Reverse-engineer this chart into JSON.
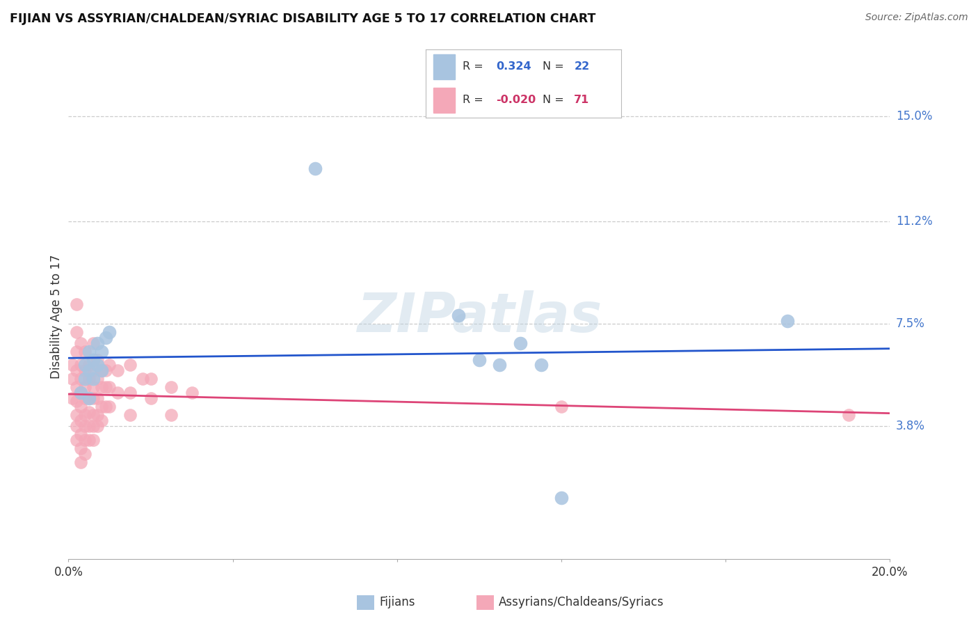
{
  "title": "FIJIAN VS ASSYRIAN/CHALDEAN/SYRIAC DISABILITY AGE 5 TO 17 CORRELATION CHART",
  "source": "Source: ZipAtlas.com",
  "ylabel": "Disability Age 5 to 17",
  "xlim": [
    0.0,
    0.2
  ],
  "ylim": [
    -0.01,
    0.165
  ],
  "ytick_positions": [
    0.038,
    0.075,
    0.112,
    0.15
  ],
  "ytick_labels": [
    "3.8%",
    "7.5%",
    "11.2%",
    "15.0%"
  ],
  "grid_color": "#cccccc",
  "background_color": "#ffffff",
  "watermark": "ZIPatlas",
  "fijian_color": "#a8c4e0",
  "assyrian_color": "#f4a8b8",
  "fijian_line_color": "#2255cc",
  "assyrian_line_color": "#dd4477",
  "fijian_points": [
    [
      0.003,
      0.05
    ],
    [
      0.004,
      0.055
    ],
    [
      0.004,
      0.06
    ],
    [
      0.005,
      0.048
    ],
    [
      0.005,
      0.058
    ],
    [
      0.005,
      0.065
    ],
    [
      0.006,
      0.055
    ],
    [
      0.006,
      0.062
    ],
    [
      0.007,
      0.06
    ],
    [
      0.007,
      0.068
    ],
    [
      0.008,
      0.058
    ],
    [
      0.008,
      0.065
    ],
    [
      0.009,
      0.07
    ],
    [
      0.01,
      0.072
    ],
    [
      0.06,
      0.131
    ],
    [
      0.095,
      0.078
    ],
    [
      0.1,
      0.062
    ],
    [
      0.105,
      0.06
    ],
    [
      0.11,
      0.068
    ],
    [
      0.115,
      0.06
    ],
    [
      0.175,
      0.076
    ],
    [
      0.12,
      0.012
    ]
  ],
  "assyrian_points": [
    [
      0.001,
      0.06
    ],
    [
      0.001,
      0.055
    ],
    [
      0.001,
      0.048
    ],
    [
      0.002,
      0.082
    ],
    [
      0.002,
      0.072
    ],
    [
      0.002,
      0.065
    ],
    [
      0.002,
      0.058
    ],
    [
      0.002,
      0.052
    ],
    [
      0.002,
      0.047
    ],
    [
      0.002,
      0.042
    ],
    [
      0.002,
      0.038
    ],
    [
      0.002,
      0.033
    ],
    [
      0.003,
      0.068
    ],
    [
      0.003,
      0.06
    ],
    [
      0.003,
      0.055
    ],
    [
      0.003,
      0.05
    ],
    [
      0.003,
      0.045
    ],
    [
      0.003,
      0.04
    ],
    [
      0.003,
      0.035
    ],
    [
      0.003,
      0.03
    ],
    [
      0.003,
      0.025
    ],
    [
      0.004,
      0.065
    ],
    [
      0.004,
      0.058
    ],
    [
      0.004,
      0.052
    ],
    [
      0.004,
      0.048
    ],
    [
      0.004,
      0.042
    ],
    [
      0.004,
      0.038
    ],
    [
      0.004,
      0.033
    ],
    [
      0.004,
      0.028
    ],
    [
      0.005,
      0.06
    ],
    [
      0.005,
      0.055
    ],
    [
      0.005,
      0.048
    ],
    [
      0.005,
      0.043
    ],
    [
      0.005,
      0.038
    ],
    [
      0.005,
      0.033
    ],
    [
      0.006,
      0.068
    ],
    [
      0.006,
      0.058
    ],
    [
      0.006,
      0.052
    ],
    [
      0.006,
      0.048
    ],
    [
      0.006,
      0.042
    ],
    [
      0.006,
      0.038
    ],
    [
      0.006,
      0.033
    ],
    [
      0.007,
      0.062
    ],
    [
      0.007,
      0.055
    ],
    [
      0.007,
      0.048
    ],
    [
      0.007,
      0.042
    ],
    [
      0.007,
      0.038
    ],
    [
      0.008,
      0.058
    ],
    [
      0.008,
      0.052
    ],
    [
      0.008,
      0.045
    ],
    [
      0.008,
      0.04
    ],
    [
      0.009,
      0.058
    ],
    [
      0.009,
      0.052
    ],
    [
      0.009,
      0.045
    ],
    [
      0.01,
      0.06
    ],
    [
      0.01,
      0.052
    ],
    [
      0.01,
      0.045
    ],
    [
      0.012,
      0.058
    ],
    [
      0.012,
      0.05
    ],
    [
      0.015,
      0.06
    ],
    [
      0.015,
      0.05
    ],
    [
      0.015,
      0.042
    ],
    [
      0.018,
      0.055
    ],
    [
      0.02,
      0.055
    ],
    [
      0.02,
      0.048
    ],
    [
      0.025,
      0.052
    ],
    [
      0.025,
      0.042
    ],
    [
      0.03,
      0.05
    ],
    [
      0.12,
      0.045
    ],
    [
      0.19,
      0.042
    ]
  ]
}
